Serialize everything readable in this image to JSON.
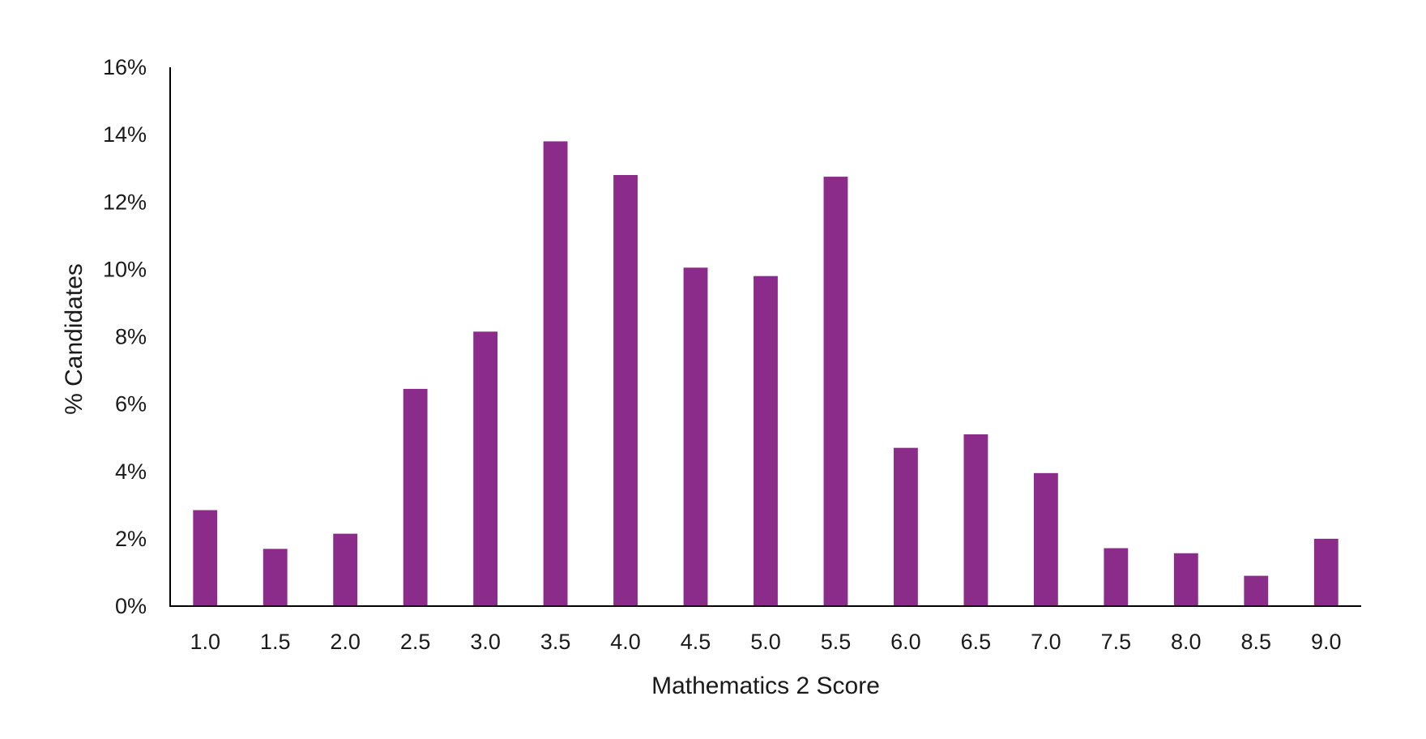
{
  "chart_data": {
    "type": "bar",
    "title": "",
    "xlabel": "Mathematics 2 Score",
    "ylabel": "% Candidates",
    "categories": [
      "1.0",
      "1.5",
      "2.0",
      "2.5",
      "3.0",
      "3.5",
      "4.0",
      "4.5",
      "5.0",
      "5.5",
      "6.0",
      "6.5",
      "7.0",
      "7.5",
      "8.0",
      "8.5",
      "9.0"
    ],
    "values": [
      2.85,
      1.7,
      2.15,
      6.45,
      8.15,
      13.8,
      12.8,
      10.05,
      9.8,
      12.75,
      4.7,
      5.1,
      3.95,
      1.72,
      1.57,
      0.9,
      2.0
    ],
    "ylim": [
      0,
      16
    ],
    "yticks": [
      0,
      2,
      4,
      6,
      8,
      10,
      12,
      14,
      16
    ],
    "ytick_labels": [
      "0%",
      "2%",
      "4%",
      "6%",
      "8%",
      "10%",
      "12%",
      "14%",
      "16%"
    ],
    "bar_color": "#8B2C8A",
    "grid": false,
    "legend": "none"
  }
}
